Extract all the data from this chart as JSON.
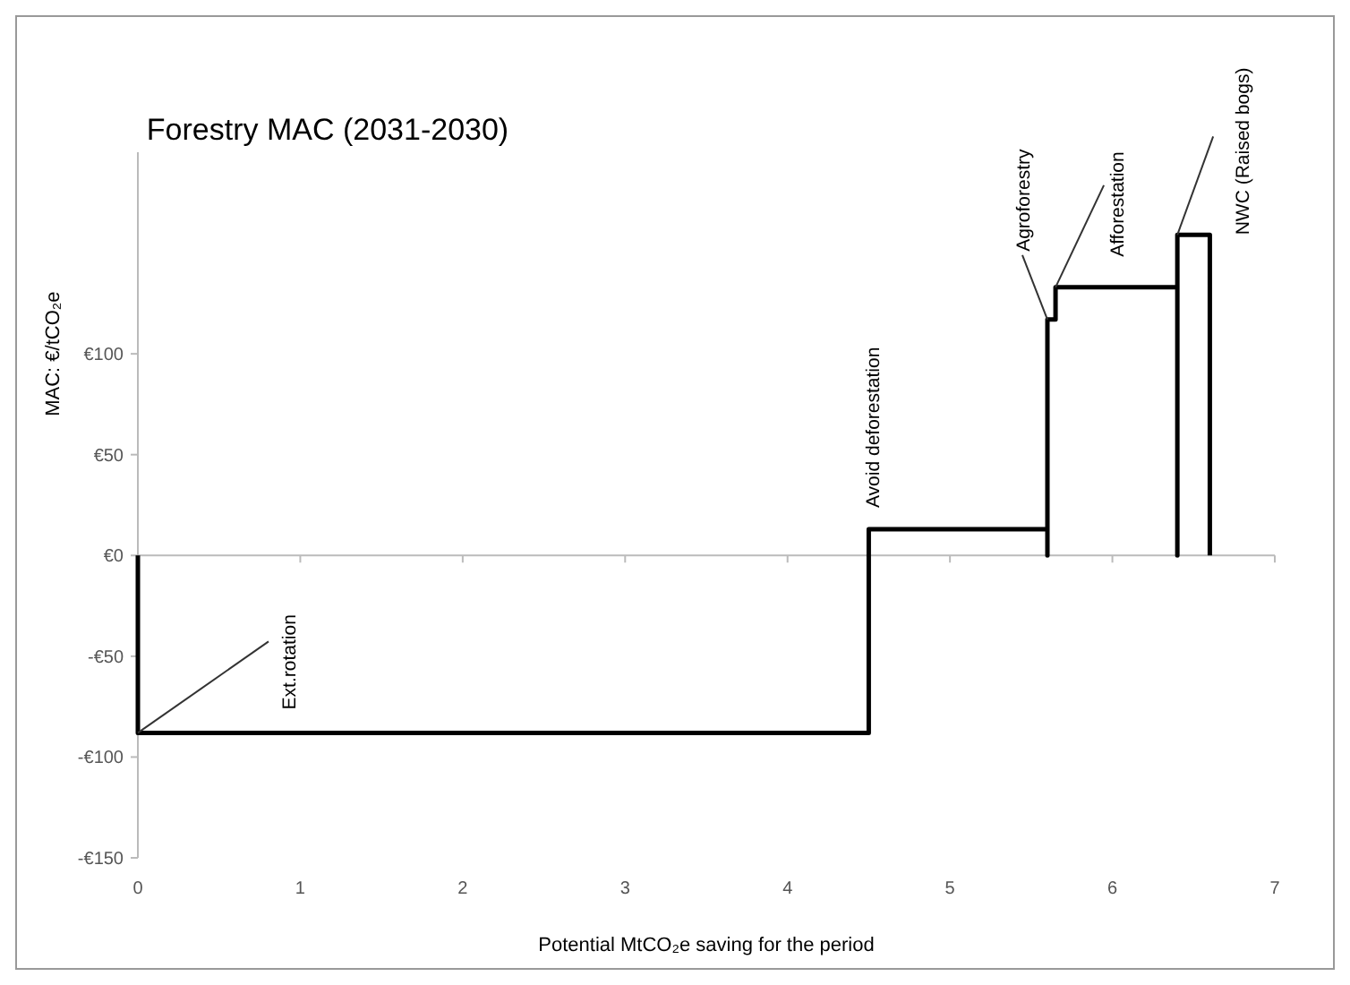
{
  "chart_data": {
    "type": "line",
    "title": "Forestry MAC (2031-2030)",
    "xlabel": "Potential MtCO₂e saving for the period",
    "ylabel": "MAC: €/tCO₂e",
    "series": [
      {
        "color": "#000000",
        "x": [
          0,
          0,
          4.5,
          4.5,
          5.6,
          5.6,
          5.6,
          5.65,
          5.65,
          6.4,
          6.4,
          6.4,
          6.6,
          6.6
        ],
        "values": [
          0,
          -88,
          -88,
          13,
          13,
          0,
          117,
          117,
          133,
          133,
          0,
          159,
          159,
          0
        ]
      }
    ],
    "xlim": [
      0,
      7
    ],
    "xticks": [
      0,
      1,
      2,
      3,
      4,
      5,
      6,
      7
    ],
    "ylim": [
      -150,
      200
    ],
    "yticks": [
      {
        "value": -150,
        "label": "-€150"
      },
      {
        "value": -100,
        "label": "-€100"
      },
      {
        "value": -50,
        "label": "-€50"
      },
      {
        "value": 0,
        "label": "€0"
      },
      {
        "value": 50,
        "label": "€50"
      },
      {
        "value": 100,
        "label": "€100"
      }
    ],
    "annotations": [
      {
        "text": "Ext.rotation",
        "x": 0,
        "y": -88
      },
      {
        "text": "Avoid deforestation",
        "x": 4.5,
        "y": 13
      },
      {
        "text": "Agroforestry",
        "x": 5.6,
        "y": 117
      },
      {
        "text": "Afforestation",
        "x": 5.65,
        "y": 133
      },
      {
        "text": "NWC (Raised bogs)",
        "x": 6.4,
        "y": 159
      }
    ],
    "marker": "none"
  }
}
